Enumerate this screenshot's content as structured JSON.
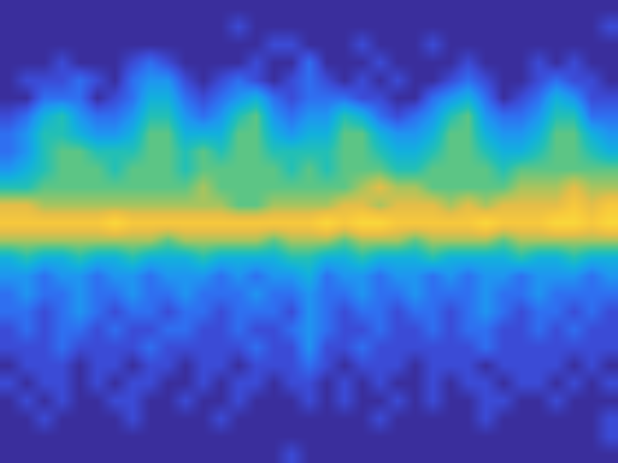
{
  "chart_data": {
    "type": "heatmap",
    "tick_labels": false,
    "zlim": [
      0,
      10
    ],
    "cells": [
      [
        0,
        0,
        0,
        0,
        0,
        0,
        0,
        0,
        0,
        0,
        0,
        0,
        0,
        0,
        0,
        0,
        0,
        0,
        0,
        0,
        0,
        0,
        0,
        0,
        0,
        0,
        0,
        0,
        0,
        0,
        0,
        0,
        0,
        0,
        0
      ],
      [
        0,
        0,
        0,
        0,
        0,
        0,
        0,
        0,
        0,
        0,
        0,
        0,
        0,
        1,
        0,
        0,
        0,
        0,
        0,
        0,
        0,
        0,
        0,
        0,
        0,
        0,
        0,
        0,
        0,
        0,
        0,
        0,
        0,
        0,
        1
      ],
      [
        0,
        0,
        0,
        0,
        0,
        0,
        0,
        0,
        0,
        0,
        0,
        0,
        0,
        0,
        0,
        1,
        1,
        0,
        0,
        0,
        1,
        0,
        0,
        0,
        1,
        0,
        0,
        0,
        0,
        0,
        0,
        0,
        0,
        0,
        0
      ],
      [
        0,
        0,
        0,
        1,
        0,
        0,
        0,
        1,
        2,
        1,
        0,
        0,
        0,
        0,
        1,
        0,
        0,
        2,
        0,
        0,
        0,
        1,
        0,
        0,
        0,
        0,
        1,
        0,
        0,
        0,
        1,
        0,
        1,
        0,
        0
      ],
      [
        0,
        1,
        1,
        1,
        2,
        1,
        0,
        2,
        3,
        3,
        1,
        0,
        1,
        2,
        1,
        0,
        1,
        2,
        1,
        0,
        1,
        0,
        1,
        0,
        0,
        1,
        2,
        1,
        0,
        0,
        1,
        2,
        1,
        1,
        0
      ],
      [
        0,
        0,
        2,
        2,
        2,
        0,
        1,
        2,
        4,
        4,
        2,
        1,
        2,
        3,
        4,
        2,
        1,
        2,
        2,
        2,
        1,
        1,
        0,
        0,
        2,
        3,
        4,
        2,
        0,
        1,
        2,
        4,
        3,
        1,
        1
      ],
      [
        1,
        2,
        4,
        5,
        3,
        2,
        2,
        3,
        5,
        5,
        3,
        2,
        3,
        5,
        6,
        3,
        2,
        3,
        3,
        5,
        4,
        2,
        1,
        2,
        3,
        5,
        6,
        3,
        2,
        2,
        3,
        5,
        5,
        2,
        2
      ],
      [
        2,
        3,
        5,
        5,
        4,
        3,
        3,
        4,
        6,
        6,
        4,
        4,
        4,
        6,
        6,
        4,
        3,
        4,
        4,
        6,
        6,
        4,
        3,
        3,
        4,
        6,
        6,
        4,
        3,
        3,
        4,
        6,
        6,
        4,
        3
      ],
      [
        2,
        3,
        5,
        6,
        6,
        5,
        5,
        5,
        6,
        6,
        5,
        6,
        5,
        6,
        6,
        5,
        5,
        5,
        5,
        6,
        6,
        5,
        4,
        4,
        5,
        6,
        6,
        5,
        4,
        4,
        5,
        6,
        6,
        5,
        4
      ],
      [
        3,
        4,
        5,
        6,
        6,
        6,
        5,
        6,
        6,
        6,
        5,
        6,
        6,
        6,
        6,
        6,
        5,
        6,
        5,
        6,
        6,
        6,
        5,
        5,
        6,
        6,
        6,
        6,
        5,
        6,
        6,
        6,
        6,
        6,
        6
      ],
      [
        5,
        5,
        6,
        6,
        6,
        6,
        6,
        6,
        6,
        6,
        6,
        7,
        6,
        6,
        6,
        6,
        6,
        6,
        6,
        6,
        7,
        8,
        7,
        7,
        6,
        6,
        6,
        6,
        6,
        7,
        7,
        7,
        8,
        7,
        7
      ],
      [
        8,
        8,
        7,
        7,
        7,
        7,
        7,
        7,
        7,
        7,
        7,
        7,
        7,
        6,
        6,
        7,
        7,
        7,
        7,
        8,
        8,
        7,
        8,
        8,
        8,
        7,
        8,
        7,
        8,
        8,
        8,
        8,
        9,
        8,
        9
      ],
      [
        9,
        9,
        9,
        9,
        9,
        9,
        10,
        9,
        9,
        9,
        9,
        9,
        9,
        9,
        9,
        9,
        9,
        9,
        10,
        9,
        10,
        10,
        9,
        9,
        9,
        9,
        9,
        10,
        9,
        9,
        9,
        10,
        10,
        9,
        10
      ],
      [
        7,
        7,
        7,
        7,
        7,
        7,
        7,
        7,
        7,
        6,
        7,
        7,
        7,
        7,
        7,
        6,
        7,
        7,
        7,
        6,
        7,
        7,
        7,
        6,
        7,
        7,
        7,
        7,
        6,
        7,
        7,
        7,
        7,
        7,
        7
      ],
      [
        4,
        5,
        4,
        4,
        5,
        4,
        4,
        5,
        4,
        4,
        4,
        5,
        4,
        4,
        4,
        4,
        5,
        5,
        4,
        4,
        5,
        4,
        4,
        4,
        5,
        4,
        4,
        4,
        4,
        5,
        4,
        4,
        5,
        4,
        4
      ],
      [
        3,
        3,
        2,
        3,
        3,
        2,
        3,
        3,
        2,
        3,
        3,
        3,
        2,
        3,
        2,
        3,
        3,
        4,
        2,
        3,
        3,
        2,
        3,
        3,
        2,
        3,
        2,
        3,
        3,
        2,
        3,
        3,
        3,
        2,
        3
      ],
      [
        2,
        3,
        2,
        2,
        3,
        2,
        2,
        3,
        2,
        2,
        3,
        2,
        2,
        2,
        3,
        2,
        2,
        3,
        2,
        2,
        3,
        2,
        2,
        3,
        2,
        2,
        2,
        3,
        2,
        2,
        3,
        2,
        2,
        2,
        2
      ],
      [
        2,
        2,
        1,
        2,
        3,
        2,
        1,
        2,
        2,
        1,
        2,
        2,
        1,
        2,
        2,
        2,
        1,
        3,
        2,
        1,
        2,
        2,
        1,
        2,
        2,
        1,
        2,
        3,
        2,
        1,
        2,
        2,
        1,
        2,
        1
      ],
      [
        1,
        2,
        1,
        2,
        2,
        1,
        2,
        1,
        1,
        2,
        2,
        1,
        1,
        2,
        1,
        1,
        2,
        3,
        2,
        1,
        1,
        2,
        1,
        1,
        2,
        1,
        2,
        2,
        1,
        1,
        2,
        1,
        2,
        1,
        1
      ],
      [
        1,
        1,
        1,
        2,
        1,
        1,
        1,
        1,
        2,
        1,
        1,
        1,
        1,
        1,
        2,
        1,
        1,
        3,
        1,
        1,
        2,
        1,
        1,
        1,
        1,
        1,
        1,
        2,
        1,
        1,
        1,
        1,
        1,
        1,
        1
      ],
      [
        0,
        1,
        1,
        1,
        0,
        1,
        1,
        0,
        1,
        1,
        0,
        1,
        1,
        0,
        1,
        1,
        1,
        2,
        1,
        0,
        1,
        1,
        1,
        0,
        1,
        1,
        1,
        0,
        1,
        1,
        1,
        1,
        0,
        1,
        0
      ],
      [
        1,
        0,
        1,
        1,
        0,
        1,
        0,
        1,
        1,
        0,
        0,
        1,
        0,
        1,
        1,
        0,
        1,
        1,
        0,
        1,
        0,
        1,
        0,
        0,
        1,
        0,
        1,
        1,
        0,
        1,
        1,
        0,
        1,
        0,
        1
      ],
      [
        0,
        1,
        0,
        1,
        0,
        0,
        1,
        1,
        0,
        0,
        1,
        0,
        0,
        1,
        0,
        0,
        0,
        1,
        0,
        1,
        0,
        0,
        1,
        0,
        1,
        0,
        0,
        1,
        1,
        0,
        0,
        1,
        0,
        0,
        0
      ],
      [
        0,
        0,
        1,
        0,
        0,
        0,
        0,
        1,
        0,
        0,
        0,
        0,
        1,
        0,
        0,
        0,
        0,
        0,
        0,
        0,
        0,
        1,
        0,
        0,
        0,
        0,
        0,
        1,
        0,
        0,
        0,
        0,
        0,
        0,
        1
      ],
      [
        0,
        0,
        0,
        0,
        0,
        0,
        0,
        0,
        0,
        0,
        0,
        0,
        0,
        0,
        0,
        0,
        0,
        0,
        0,
        0,
        0,
        0,
        0,
        0,
        0,
        0,
        0,
        0,
        0,
        0,
        0,
        0,
        0,
        0,
        1
      ],
      [
        0,
        0,
        0,
        0,
        0,
        0,
        0,
        0,
        0,
        0,
        0,
        0,
        0,
        0,
        0,
        0,
        1,
        0,
        0,
        0,
        0,
        0,
        0,
        0,
        0,
        0,
        0,
        0,
        0,
        0,
        0,
        0,
        0,
        0,
        0
      ]
    ]
  }
}
